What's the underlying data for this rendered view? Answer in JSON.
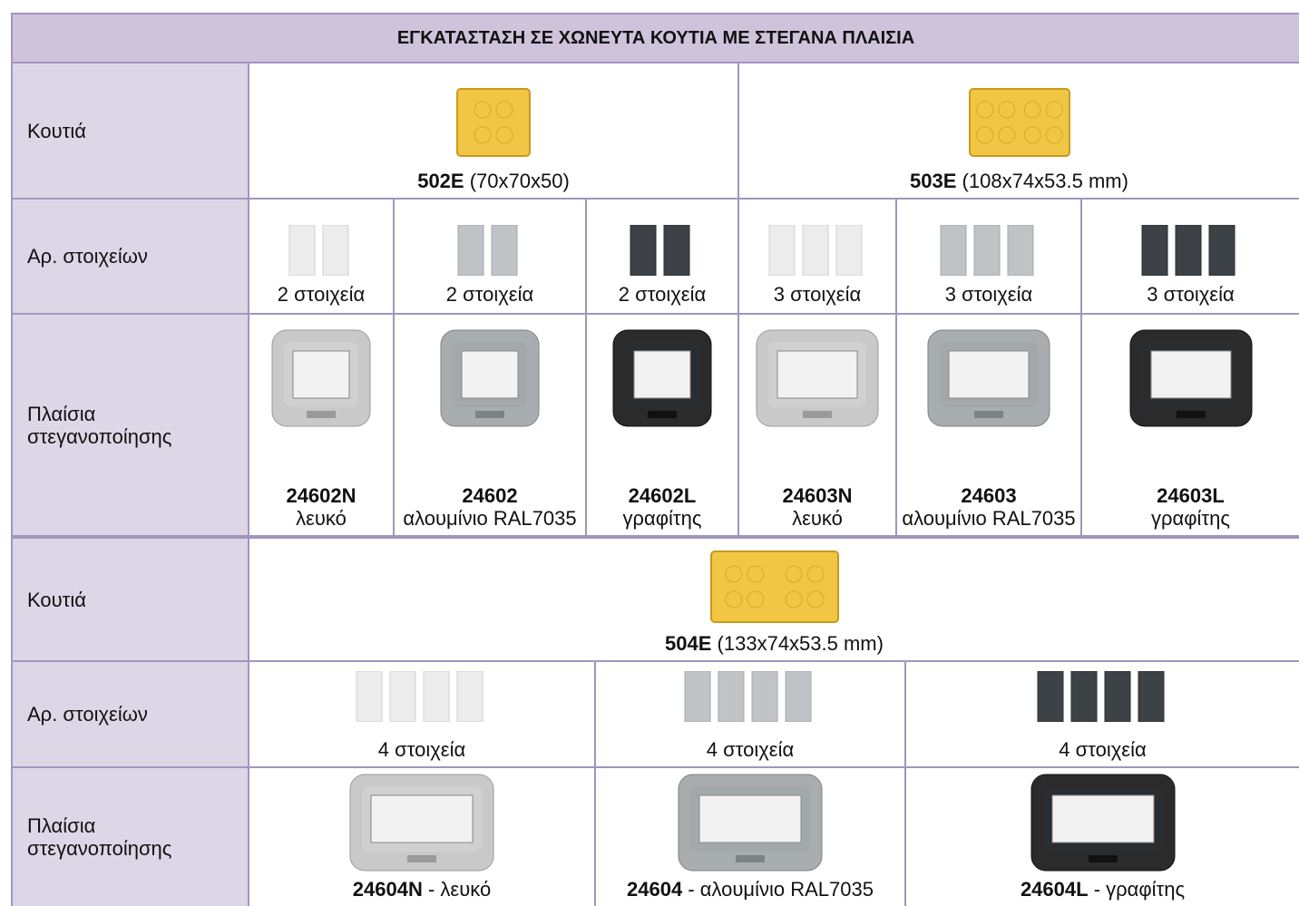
{
  "title": "ΕΓΚΑΤΑΣΤΑΣΗ ΣΕ ΧΩΝΕΥΤΑ ΚΟΥΤΙΑ ΜΕ ΣΤΕΓΑΝΑ ΠΛΑΙΣΙΑ",
  "section1": {
    "boxes": {
      "label": "Κουτιά",
      "items": [
        {
          "code": "502E",
          "desc": "(70x70x50)"
        },
        {
          "code": "503E",
          "desc": "(108x74x53.5 mm)"
        }
      ]
    },
    "modules": {
      "label": "Αρ. στοιχείων",
      "items": [
        "2 στοιχεία",
        "2 στοιχεία",
        "2 στοιχεία",
        "3  στοιχεία",
        "3  στοιχεία",
        "3  στοιχεία"
      ]
    },
    "frames": {
      "label": "Πλαίσια στεγανοποίησης",
      "items": [
        {
          "code": "24602N",
          "desc": "λευκό"
        },
        {
          "code": "24602",
          "desc": "αλουμίνιο RAL7035"
        },
        {
          "code": "24602L",
          "desc": "γραφίτης"
        },
        {
          "code": "24603N",
          "desc": "λευκό"
        },
        {
          "code": "24603",
          "desc": "αλουμίνιο RAL7035"
        },
        {
          "code": "24603L",
          "desc": "γραφίτης"
        }
      ]
    }
  },
  "section2": {
    "boxes": {
      "label": "Κουτιά",
      "items": [
        {
          "code": "504E",
          "desc": "(133x74x53.5 mm)"
        }
      ]
    },
    "modules": {
      "label": "Αρ. στοιχείων",
      "items": [
        "4 στοιχεία",
        "4 στοιχεία",
        "4  στοιχεία"
      ]
    },
    "frames": {
      "label": "Πλαίσια στεγανοποίησης",
      "items": [
        {
          "code": "24604N",
          "desc": "- λευκό"
        },
        {
          "code": "24604",
          "desc": "- αλουμίνιο RAL7035"
        },
        {
          "code": "24604L",
          "desc": "- γραφίτης"
        }
      ]
    }
  }
}
